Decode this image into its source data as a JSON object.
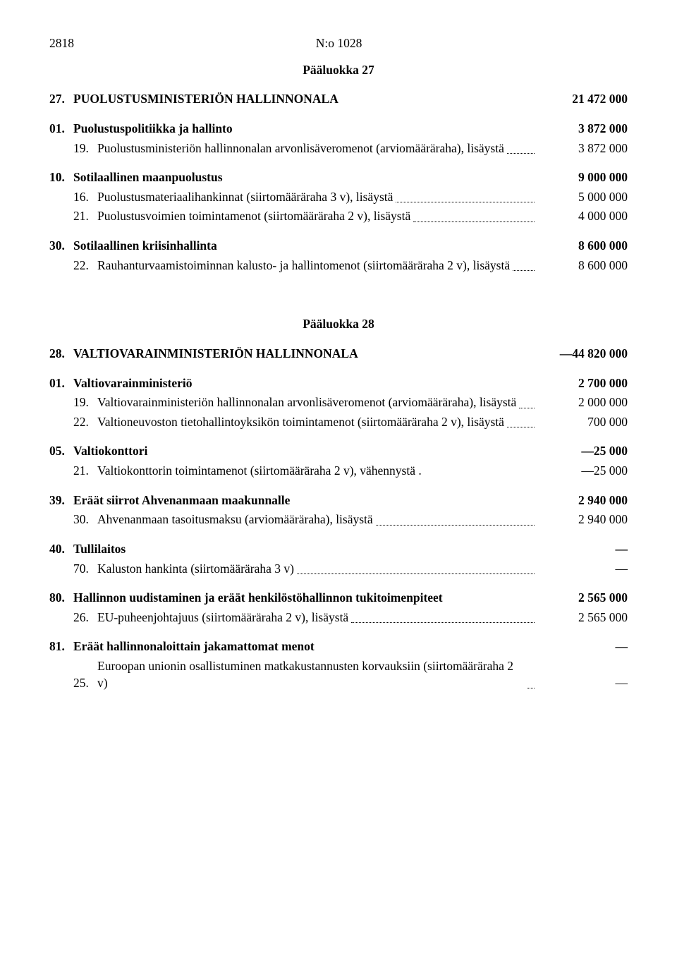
{
  "header": {
    "page_number": "2818",
    "doc_number": "N:o 1028"
  },
  "sections": [
    {
      "paaluokka": "Pääluokka 27",
      "items": [
        {
          "type": "head",
          "num": "27.",
          "label": "PUOLUSTUSMINISTERIÖN HALLINNONALA",
          "amount": "21 472 000"
        },
        {
          "type": "sub",
          "num": "01.",
          "label": "Puolustuspolitiikka ja hallinto",
          "amount": "3 872 000"
        },
        {
          "type": "line",
          "num": "19.",
          "label": "Puolustusministeriön hallinnonalan arvonlisäveromenot (arviomääräraha), lisäystä",
          "amount": "3 872 000",
          "dots": true
        },
        {
          "type": "sub",
          "num": "10.",
          "label": "Sotilaallinen maanpuolustus",
          "amount": "9 000 000"
        },
        {
          "type": "line",
          "num": "16.",
          "label": "Puolustusmateriaalihankinnat (siirtomääräraha 3 v), lisäystä",
          "amount": "5 000 000",
          "dots": true
        },
        {
          "type": "line",
          "num": "21.",
          "label": "Puolustusvoimien toimintamenot (siirtomääräraha 2 v), lisäystä",
          "amount": "4 000 000",
          "dots": true
        },
        {
          "type": "sub",
          "num": "30.",
          "label": "Sotilaallinen kriisinhallinta",
          "amount": "8 600 000"
        },
        {
          "type": "line",
          "num": "22.",
          "label": "Rauhanturvaamistoiminnan kalusto- ja hallintomenot (siirtomääräraha 2 v), lisäystä",
          "amount": "8 600 000",
          "dots": true
        }
      ]
    },
    {
      "paaluokka": "Pääluokka 28",
      "items": [
        {
          "type": "head",
          "num": "28.",
          "label": "VALTIOVARAINMINISTERIÖN HALLINNONALA",
          "amount": "—44 820 000"
        },
        {
          "type": "sub",
          "num": "01.",
          "label": "Valtiovarainministeriö",
          "amount": "2 700 000"
        },
        {
          "type": "line",
          "num": "19.",
          "label": "Valtiovarainministeriön hallinnonalan arvonlisäveromenot (arviomääräraha), lisäystä",
          "amount": "2 000 000",
          "dots": true
        },
        {
          "type": "line",
          "num": "22.",
          "label": "Valtioneuvoston tietohallintoyksikön toimintamenot (siirtomääräraha 2 v), lisäystä",
          "amount": "700 000",
          "dots": true
        },
        {
          "type": "sub",
          "num": "05.",
          "label": "Valtiokonttori",
          "amount": "—25 000"
        },
        {
          "type": "line",
          "num": "21.",
          "label": "Valtiokonttorin toimintamenot (siirtomääräraha 2 v), vähennystä  .",
          "amount": "—25 000",
          "dots": false
        },
        {
          "type": "sub",
          "num": "39.",
          "label": "Eräät siirrot Ahvenanmaan maakunnalle",
          "amount": "2 940 000"
        },
        {
          "type": "line",
          "num": "30.",
          "label": "Ahvenanmaan tasoitusmaksu (arviomääräraha), lisäystä",
          "amount": "2 940 000",
          "dots": true
        },
        {
          "type": "sub",
          "num": "40.",
          "label": "Tullilaitos",
          "amount": "—"
        },
        {
          "type": "line",
          "num": "70.",
          "label": "Kaluston hankinta (siirtomääräraha 3 v)",
          "amount": "—",
          "dots": true
        },
        {
          "type": "sub",
          "num": "80.",
          "label": "Hallinnon uudistaminen ja eräät henkilöstöhallinnon tukitoimenpiteet",
          "amount": "2 565 000"
        },
        {
          "type": "line",
          "num": "26.",
          "label": "EU-puheenjohtajuus (siirtomääräraha 2 v), lisäystä",
          "amount": "2 565 000",
          "dots": true
        },
        {
          "type": "sub",
          "num": "81.",
          "label": "Eräät hallinnonaloittain jakamattomat menot",
          "amount": "—"
        },
        {
          "type": "line",
          "num": "25.",
          "label": "Euroopan unionin osallistuminen matkakustannusten korvauksiin (siirtomääräraha 2 v)",
          "amount": "—",
          "dots": true
        }
      ]
    }
  ]
}
